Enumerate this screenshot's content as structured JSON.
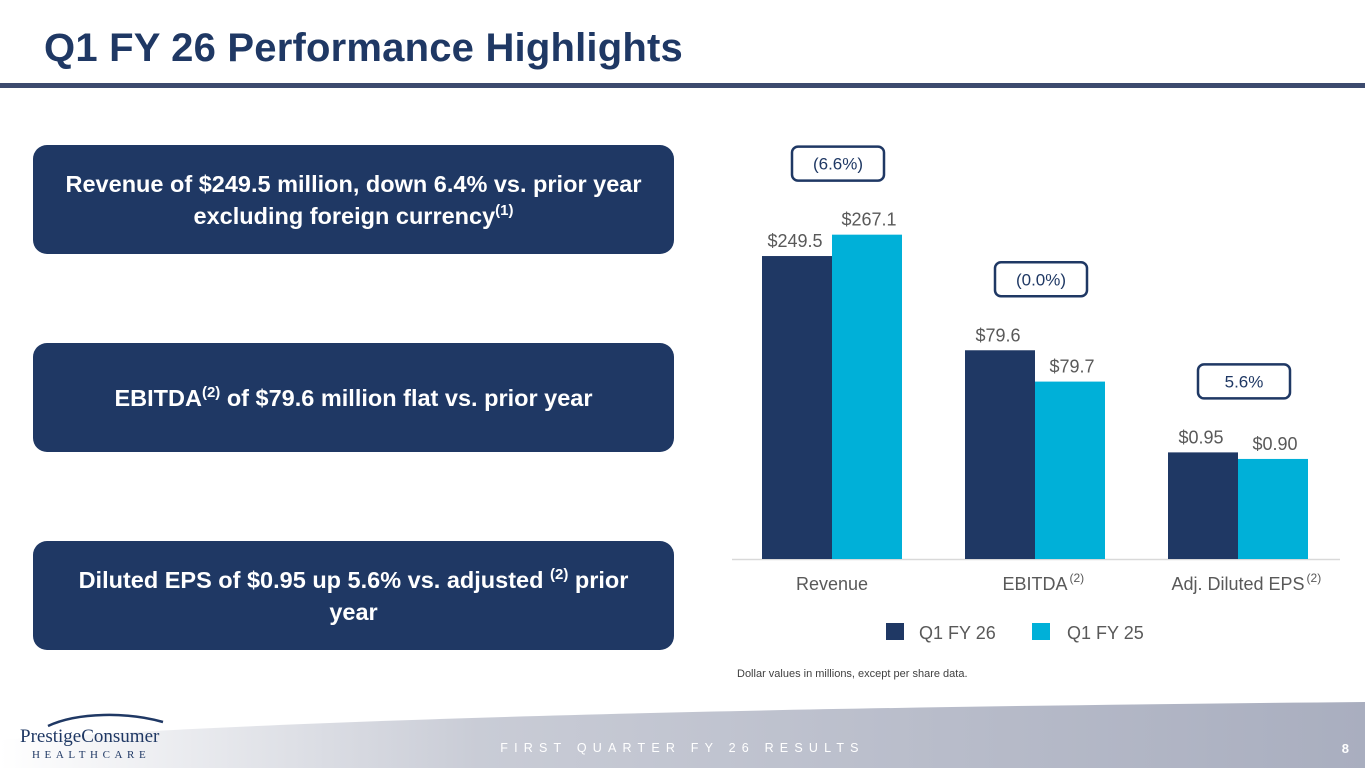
{
  "page": {
    "title": "Q1 FY 26 Performance Highlights",
    "footer_text": "FIRST QUARTER FY 26 RESULTS",
    "page_number": "8",
    "note": "Dollar values in millions, except per share data."
  },
  "logo": {
    "word1": "Prestige",
    "word2": "Consumer",
    "sub": "HEALTHCARE"
  },
  "callouts": [
    {
      "parts": [
        "Revenue of $249.5 million, down 6.4% vs. prior year excluding foreign currency",
        "(1)",
        ""
      ]
    },
    {
      "parts": [
        "EBITDA",
        "(2)",
        " of $79.6 million flat vs. prior year"
      ]
    },
    {
      "parts": [
        "Diluted EPS of $0.95 up 5.6% vs. adjusted ",
        "(2)",
        " prior year"
      ]
    }
  ],
  "colors": {
    "navy": "#1f3864",
    "cyan": "#00b0d8",
    "axis": "#d9d9d9",
    "label": "#595959"
  },
  "chart_data": {
    "type": "bar",
    "categories": [
      "Revenue",
      "EBITDA",
      "Adj. Diluted EPS"
    ],
    "category_footnotes": [
      "",
      "(2)",
      "(2)"
    ],
    "series": [
      {
        "name": "Q1 FY 26",
        "labels": [
          "$249.5",
          "$79.6",
          "$0.95"
        ]
      },
      {
        "name": "Q1 FY 25",
        "labels": [
          "$267.1",
          "$79.7",
          "$0.90"
        ]
      }
    ],
    "bar_scale_values": [
      [
        249.5,
        171.9,
        87.8
      ],
      [
        267.1,
        146.1,
        82.4
      ]
    ],
    "change_badges": [
      "(6.6%)",
      "(0.0%)",
      "5.6%"
    ],
    "title": "",
    "ylim": [
      0,
      280
    ]
  }
}
